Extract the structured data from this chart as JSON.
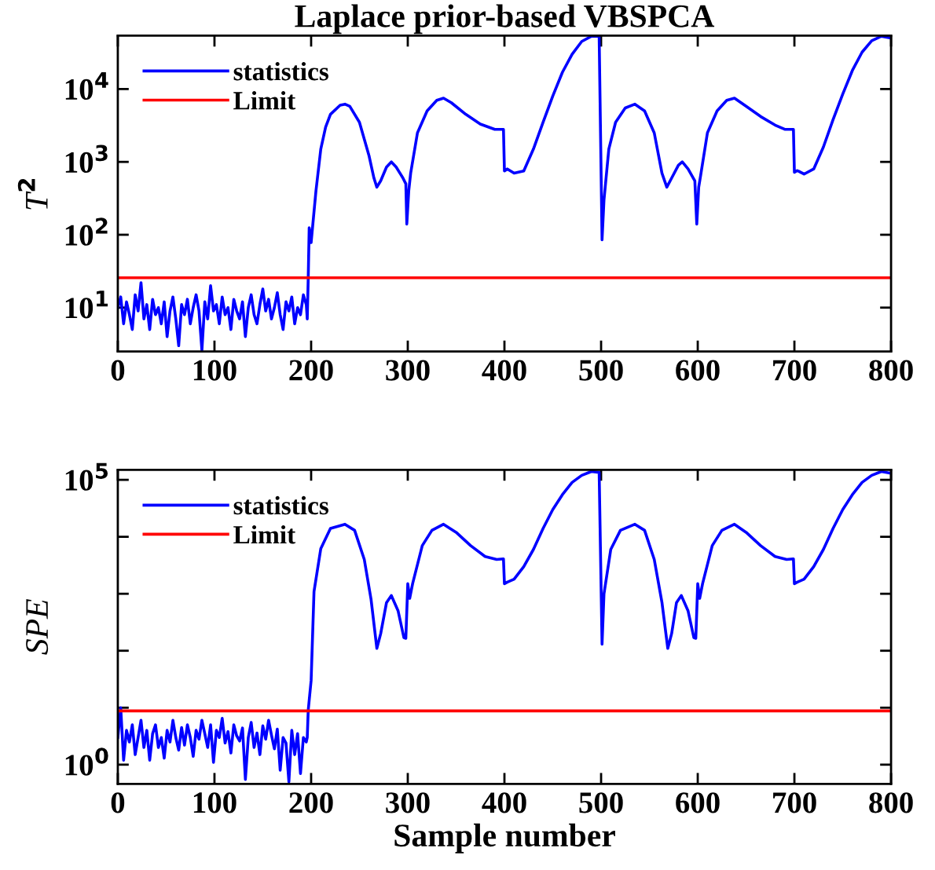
{
  "chart_data": [
    {
      "type": "line",
      "title": "Laplace prior-based VBSPCA",
      "ylabel": "T$^{2}$",
      "log": "y",
      "legend": "top left",
      "grid": false,
      "xlim": [
        0,
        800
      ],
      "xticks": [
        0,
        100,
        200,
        300,
        400,
        500,
        600,
        700,
        800
      ],
      "ylim": [
        2.5,
        54000
      ],
      "yticks": [
        {
          "value": 10,
          "label": "10$^{1}$"
        },
        {
          "value": 100,
          "label": "10$^{2}$"
        },
        {
          "value": 1000,
          "label": "10$^{3}$"
        },
        {
          "value": 10000,
          "label": "10$^{4}$"
        }
      ],
      "series": [
        {
          "name": "statistics",
          "color": "#0000ff",
          "x": [
            0,
            3,
            6,
            9,
            12,
            15,
            18,
            21,
            24,
            27,
            30,
            33,
            36,
            39,
            42,
            45,
            48,
            51,
            54,
            57,
            60,
            63,
            66,
            69,
            72,
            75,
            78,
            81,
            84,
            87,
            90,
            93,
            96,
            99,
            102,
            105,
            108,
            111,
            114,
            117,
            120,
            123,
            126,
            129,
            132,
            135,
            138,
            141,
            144,
            147,
            150,
            153,
            156,
            159,
            162,
            165,
            168,
            171,
            174,
            177,
            180,
            183,
            186,
            189,
            192,
            195,
            196,
            197,
            198,
            200,
            205,
            210,
            215,
            220,
            230,
            235,
            240,
            250,
            260,
            265,
            268,
            272,
            278,
            283,
            288,
            295,
            298,
            299,
            301,
            303,
            310,
            320,
            330,
            337,
            345,
            360,
            375,
            390,
            399,
            400,
            403,
            410,
            420,
            430,
            440,
            450,
            460,
            470,
            480,
            490,
            498,
            501,
            503,
            508,
            515,
            525,
            535,
            545,
            555,
            563,
            568,
            573,
            580,
            584,
            590,
            597,
            599,
            601,
            603,
            610,
            620,
            630,
            638,
            650,
            665,
            680,
            690,
            699,
            700,
            703,
            710,
            720,
            730,
            740,
            750,
            760,
            770,
            780,
            790,
            800
          ],
          "values": [
            10,
            14,
            6,
            12,
            8,
            5,
            15,
            9,
            22,
            7,
            11,
            5,
            13,
            8,
            10,
            6,
            12,
            4,
            9,
            14,
            7,
            3,
            11,
            8,
            13,
            6,
            10,
            15,
            9,
            2.6,
            12,
            7,
            20,
            9,
            11,
            6,
            14,
            8,
            10,
            5,
            13,
            9,
            7,
            12,
            4,
            10,
            15,
            8,
            6,
            11,
            18,
            9,
            13,
            7,
            10,
            16,
            8,
            5,
            12,
            9,
            14,
            6,
            10,
            8,
            15,
            11,
            7,
            25,
            125,
            78,
            400,
            1500,
            3000,
            4500,
            6000,
            6200,
            5800,
            3500,
            1200,
            600,
            450,
            550,
            850,
            1000,
            850,
            600,
            500,
            140,
            400,
            700,
            2500,
            5000,
            7000,
            7500,
            6500,
            4500,
            3300,
            2800,
            2800,
            750,
            800,
            700,
            750,
            1500,
            3500,
            8000,
            17000,
            30000,
            45000,
            53000,
            53000,
            85,
            300,
            1500,
            3500,
            5500,
            6200,
            5000,
            2500,
            700,
            450,
            600,
            900,
            1000,
            800,
            550,
            140,
            450,
            650,
            2500,
            5000,
            7000,
            7500,
            5800,
            4200,
            3200,
            2800,
            2800,
            720,
            760,
            680,
            800,
            1600,
            3800,
            8500,
            18000,
            32000,
            46000,
            53000,
            50000
          ]
        }
      ],
      "ref_lines": [
        {
          "axis": "y",
          "value": 25.7,
          "label": "Limit",
          "color": "#ff0000"
        }
      ]
    },
    {
      "type": "line",
      "xlabel": "Sample number",
      "ylabel": "SPE",
      "log": "y",
      "legend": "top left",
      "grid": false,
      "xlim": [
        0,
        800
      ],
      "xticks": [
        0,
        100,
        200,
        300,
        400,
        500,
        600,
        700,
        800
      ],
      "ylim": [
        0.46,
        150000
      ],
      "yticks": [
        {
          "value": 1,
          "label": "10$^{0}$"
        },
        {
          "value": 10,
          "label": null
        },
        {
          "value": 100,
          "label": null
        },
        {
          "value": 1000,
          "label": null
        },
        {
          "value": 10000,
          "label": null
        },
        {
          "value": 100000,
          "label": "10$^{5}$"
        }
      ],
      "series": [
        {
          "name": "statistics",
          "color": "#0000ff",
          "x": [
            0,
            3,
            6,
            9,
            12,
            15,
            18,
            21,
            24,
            27,
            30,
            33,
            36,
            39,
            42,
            45,
            48,
            51,
            54,
            57,
            60,
            63,
            66,
            69,
            72,
            75,
            78,
            81,
            84,
            87,
            90,
            93,
            96,
            99,
            102,
            105,
            108,
            111,
            114,
            117,
            120,
            123,
            126,
            129,
            132,
            135,
            138,
            141,
            144,
            147,
            150,
            153,
            156,
            159,
            162,
            165,
            168,
            171,
            174,
            177,
            180,
            183,
            186,
            189,
            192,
            195,
            196,
            197,
            200,
            203,
            210,
            220,
            235,
            245,
            255,
            262,
            268,
            272,
            278,
            283,
            290,
            296,
            298,
            300,
            302,
            305,
            315,
            325,
            337,
            350,
            365,
            380,
            392,
            399,
            400,
            403,
            410,
            420,
            430,
            440,
            450,
            460,
            470,
            480,
            490,
            498,
            501,
            503,
            510,
            520,
            535,
            545,
            555,
            563,
            569,
            573,
            578,
            583,
            590,
            596,
            598,
            600,
            602,
            605,
            615,
            625,
            638,
            650,
            665,
            680,
            692,
            699,
            700,
            703,
            710,
            720,
            730,
            740,
            750,
            760,
            770,
            780,
            790,
            800
          ],
          "values": [
            3,
            10,
            1.2,
            4,
            2.5,
            5,
            1.5,
            3,
            6,
            2,
            4,
            1.2,
            3.5,
            5,
            2,
            3,
            1.3,
            4,
            2.5,
            6,
            3,
            1.8,
            4.5,
            2.2,
            5,
            3,
            1.4,
            4,
            2.8,
            6,
            3.5,
            2,
            5,
            1.1,
            4,
            3,
            6.5,
            2.4,
            3.8,
            1.6,
            5,
            3.2,
            2.6,
            4.4,
            0.55,
            3,
            5.5,
            2,
            3.6,
            1.5,
            4.8,
            2.8,
            6,
            3.3,
            1.9,
            4.2,
            0.8,
            3,
            2.4,
            0.5,
            4,
            1.5,
            3.5,
            0.7,
            3,
            2.5,
            3,
            9,
            30,
            1100,
            6200,
            14000,
            16600,
            13000,
            4000,
            800,
            110,
            200,
            700,
            930,
            500,
            170,
            165,
            1500,
            830,
            1500,
            7000,
            13000,
            16600,
            12000,
            7000,
            4500,
            4000,
            4100,
            1500,
            1600,
            1800,
            3000,
            6000,
            14000,
            30000,
            55000,
            90000,
            120000,
            140000,
            135000,
            130,
            1000,
            6000,
            13000,
            16600,
            13000,
            4000,
            700,
            110,
            200,
            700,
            930,
            500,
            170,
            165,
            1500,
            830,
            1500,
            7000,
            13000,
            16600,
            12000,
            7000,
            4500,
            4000,
            4100,
            1500,
            1600,
            1800,
            3000,
            6000,
            14000,
            30000,
            55000,
            90000,
            120000,
            140000,
            130000
          ]
        }
      ],
      "ref_lines": [
        {
          "axis": "y",
          "value": 8.8,
          "label": "Limit",
          "color": "#ff0000"
        }
      ]
    }
  ]
}
